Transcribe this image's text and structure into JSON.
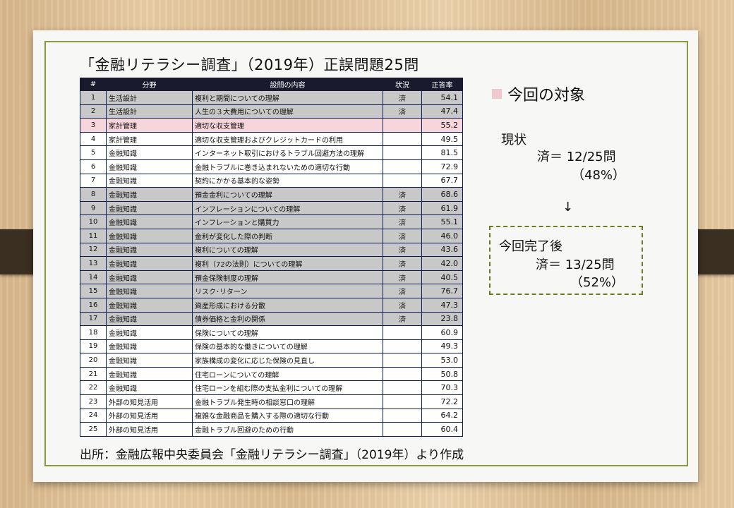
{
  "title": "「金融リテラシー調査」（2019年）正誤問題25問",
  "table": {
    "headers": [
      "#",
      "分野",
      "設問の内容",
      "状況",
      "正答率"
    ],
    "rows": [
      {
        "no": "1",
        "field": "生活設計",
        "content": "複利と期間についての理解",
        "status": "済",
        "rate": "54.1",
        "style": "gray"
      },
      {
        "no": "2",
        "field": "生活設計",
        "content": "人生の３大費用についての理解",
        "status": "済",
        "rate": "47.4",
        "style": "gray"
      },
      {
        "no": "3",
        "field": "家計管理",
        "content": "適切な収支管理",
        "status": "",
        "rate": "55.2",
        "style": "pink"
      },
      {
        "no": "4",
        "field": "家計管理",
        "content": "適切な収支管理およびクレジットカードの利用",
        "status": "",
        "rate": "49.5",
        "style": "white"
      },
      {
        "no": "5",
        "field": "金融知識",
        "content": "インターネット取引におけるトラブル回避方法の理解",
        "status": "",
        "rate": "81.5",
        "style": "white"
      },
      {
        "no": "6",
        "field": "金融知識",
        "content": "金融トラブルに巻き込まれないための適切な行動",
        "status": "",
        "rate": "72.9",
        "style": "white"
      },
      {
        "no": "7",
        "field": "金融知識",
        "content": "契約にかかる基本的な姿勢",
        "status": "",
        "rate": "67.7",
        "style": "white"
      },
      {
        "no": "8",
        "field": "金融知識",
        "content": "預金金利についての理解",
        "status": "済",
        "rate": "68.6",
        "style": "gray"
      },
      {
        "no": "9",
        "field": "金融知識",
        "content": "インフレーションについての理解",
        "status": "済",
        "rate": "61.9",
        "style": "gray"
      },
      {
        "no": "10",
        "field": "金融知識",
        "content": "インフレーションと購買力",
        "status": "済",
        "rate": "55.1",
        "style": "gray"
      },
      {
        "no": "11",
        "field": "金融知識",
        "content": "金利が変化した際の判断",
        "status": "済",
        "rate": "46.0",
        "style": "gray"
      },
      {
        "no": "12",
        "field": "金融知識",
        "content": "複利についての理解",
        "status": "済",
        "rate": "43.6",
        "style": "gray"
      },
      {
        "no": "13",
        "field": "金融知識",
        "content": "複利（72の法則）についての理解",
        "status": "済",
        "rate": "42.0",
        "style": "gray"
      },
      {
        "no": "14",
        "field": "金融知識",
        "content": "預金保険制度の理解",
        "status": "済",
        "rate": "40.5",
        "style": "gray"
      },
      {
        "no": "15",
        "field": "金融知識",
        "content": "リスク･リターン",
        "status": "済",
        "rate": "76.7",
        "style": "gray"
      },
      {
        "no": "16",
        "field": "金融知識",
        "content": "資産形成における分散",
        "status": "済",
        "rate": "47.3",
        "style": "gray"
      },
      {
        "no": "17",
        "field": "金融知識",
        "content": "債券価格と金利の関係",
        "status": "済",
        "rate": "23.8",
        "style": "gray"
      },
      {
        "no": "18",
        "field": "金融知識",
        "content": "保険についての理解",
        "status": "",
        "rate": "60.9",
        "style": "white"
      },
      {
        "no": "19",
        "field": "金融知識",
        "content": "保険の基本的な働きについての理解",
        "status": "",
        "rate": "49.3",
        "style": "white"
      },
      {
        "no": "20",
        "field": "金融知識",
        "content": "家族構成の変化に応じた保険の見直し",
        "status": "",
        "rate": "53.0",
        "style": "white"
      },
      {
        "no": "21",
        "field": "金融知識",
        "content": "住宅ローンについての理解",
        "status": "",
        "rate": "50.8",
        "style": "white"
      },
      {
        "no": "22",
        "field": "金融知識",
        "content": "住宅ローンを組む際の支払金利についての理解",
        "status": "",
        "rate": "70.3",
        "style": "white"
      },
      {
        "no": "23",
        "field": "外部の知見活用",
        "content": "金融トラブル発生時の相談窓口の理解",
        "status": "",
        "rate": "72.2",
        "style": "white"
      },
      {
        "no": "24",
        "field": "外部の知見活用",
        "content": "複雑な金融商品を購入する際の適切な行動",
        "status": "",
        "rate": "64.2",
        "style": "white"
      },
      {
        "no": "25",
        "field": "外部の知見活用",
        "content": "金融トラブル回避のための行動",
        "status": "",
        "rate": "60.4",
        "style": "white"
      }
    ]
  },
  "source": "出所：金融広報中央委員会「金融リテラシー調査」（2019年）より作成",
  "target": {
    "heading": "今回の対象",
    "current_label": "現状",
    "current_value": "済＝ 12/25問",
    "current_pct": "（48%）",
    "arrow": "↓",
    "after_label": "今回完了後",
    "after_value": "済＝ 13/25問",
    "after_pct": "（52%）"
  },
  "colors": {
    "header_bg": "#1a1a2e",
    "done_row": "#c8c8c8",
    "target_row": "#f6d6da",
    "frame": "#8a9a3a"
  }
}
